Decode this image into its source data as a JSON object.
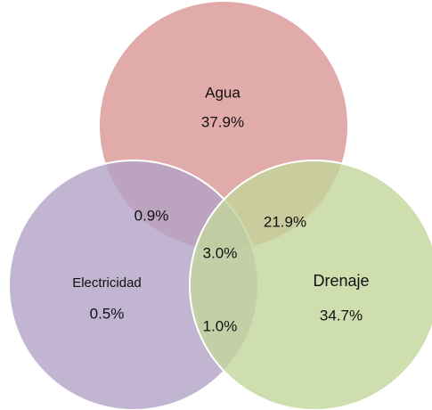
{
  "chart_data": {
    "type": "venn",
    "sets": [
      {
        "name": "Agua",
        "color": "#d99694"
      },
      {
        "name": "Electricidad",
        "color": "#b3a2c7"
      },
      {
        "name": "Drenaje",
        "color": "#c3d69b"
      }
    ],
    "regions": [
      {
        "sets": [
          0
        ],
        "value": 37.9,
        "value_label": "37.9%"
      },
      {
        "sets": [
          1
        ],
        "value": 0.5,
        "value_label": "0.5%"
      },
      {
        "sets": [
          2
        ],
        "value": 34.7,
        "value_label": "34.7%"
      },
      {
        "sets": [
          0,
          1
        ],
        "value": 0.9,
        "value_label": "0.9%"
      },
      {
        "sets": [
          0,
          2
        ],
        "value": 21.9,
        "value_label": "21.9%"
      },
      {
        "sets": [
          0,
          1,
          2
        ],
        "value": 3.0,
        "value_label": "3.0%"
      },
      {
        "sets": [
          1,
          2
        ],
        "value": 1.0,
        "value_label": "1.0%"
      }
    ]
  }
}
